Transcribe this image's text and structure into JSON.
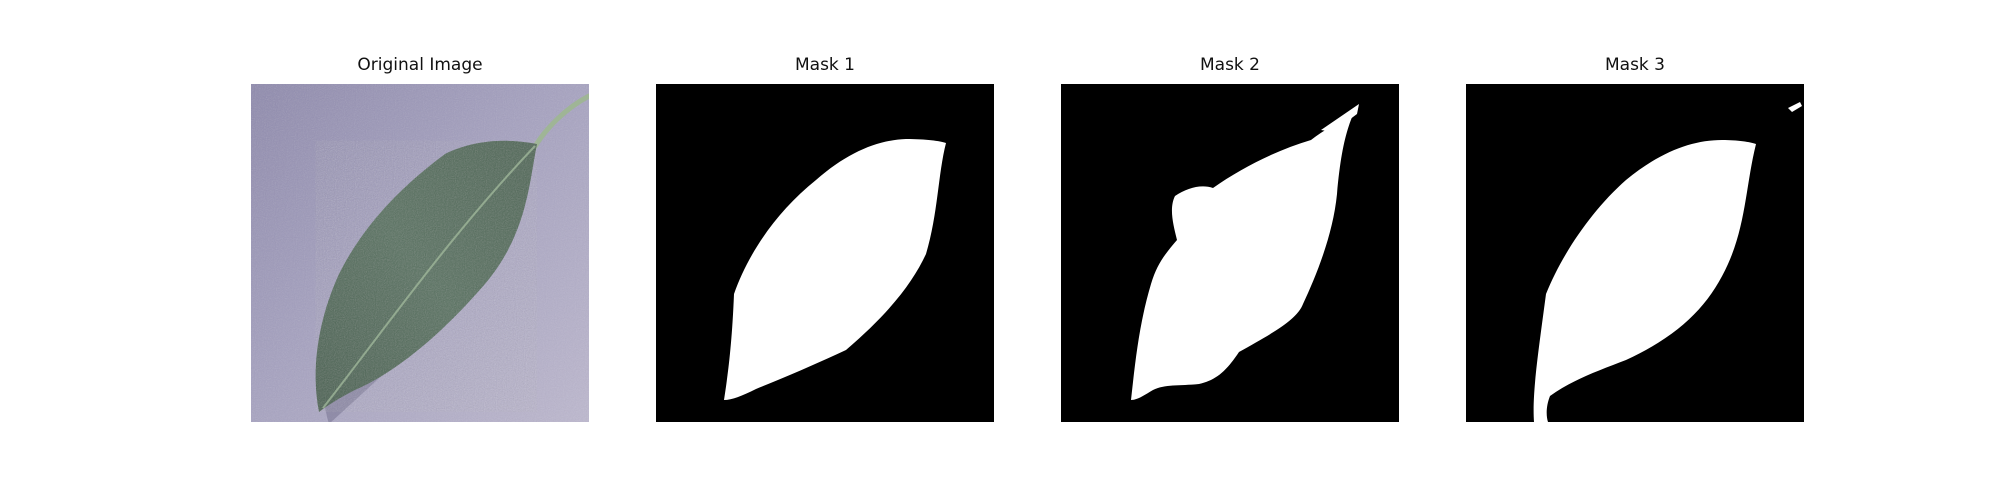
{
  "panels": [
    {
      "title": "Original Image"
    },
    {
      "title": "Mask 1"
    },
    {
      "title": "Mask 2"
    },
    {
      "title": "Mask 3"
    }
  ],
  "colors": {
    "mask_background": "#000000",
    "mask_foreground": "#ffffff",
    "photo_background": "#a7a3c0",
    "leaf": "#4f6b5a"
  }
}
